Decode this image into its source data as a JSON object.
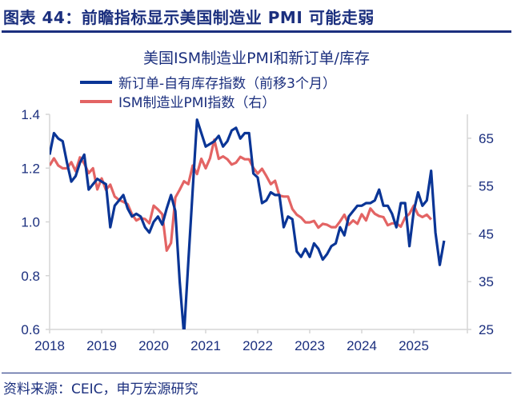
{
  "header": {
    "title": "图表 44：前瞻指标显示美国制造业 PMI 可能走弱"
  },
  "footer": {
    "source": "资料来源：CEIC，申万宏源研究"
  },
  "colors": {
    "navy": "#1b2f7e",
    "series_blue": "#0a3596",
    "series_red": "#e36464",
    "axis": "#d6d6d6"
  },
  "chart_data": {
    "type": "line",
    "title": "美国ISM制造业PMI和新订单/库存",
    "legend_position": "top-center",
    "x_start": "2018-01",
    "x_step": "month",
    "xticks": [
      "2018",
      "2019",
      "2020",
      "2021",
      "2022",
      "2023",
      "2024",
      "2025"
    ],
    "left_axis": {
      "ylim": [
        0.6,
        1.4
      ],
      "ticks": [
        "0.6",
        "0.8",
        "1.0",
        "1.2",
        "1.4"
      ]
    },
    "right_axis": {
      "ylim": [
        25,
        70
      ],
      "ticks": [
        "25",
        "35",
        "45",
        "55",
        "65"
      ]
    },
    "series": [
      {
        "name": "新订单-自有库存指数（前移3个月）",
        "axis": "left",
        "values": [
          1.25,
          1.33,
          1.31,
          1.3,
          1.22,
          1.15,
          1.17,
          1.22,
          1.25,
          1.12,
          1.14,
          1.16,
          1.15,
          1.14,
          0.98,
          1.06,
          1.08,
          1.1,
          1.05,
          1.02,
          1.03,
          1.02,
          0.98,
          0.96,
          1.0,
          1.02,
          0.99,
          1.05,
          1.1,
          1.04,
          0.78,
          0.58,
          0.85,
          1.12,
          1.38,
          1.33,
          1.28,
          1.29,
          1.3,
          1.32,
          1.28,
          1.3,
          1.34,
          1.35,
          1.31,
          1.33,
          1.33,
          1.18,
          1.165,
          1.07,
          1.08,
          1.11,
          1.1,
          1.1,
          0.98,
          1.02,
          1.01,
          0.89,
          0.87,
          0.9,
          0.87,
          0.92,
          0.9,
          0.86,
          0.88,
          0.91,
          0.92,
          0.98,
          0.95,
          1.02,
          1.04,
          1.06,
          1.06,
          1.07,
          1.07,
          1.08,
          1.12,
          1.06,
          1.06,
          1.03,
          0.98,
          1.07,
          1.07,
          0.91,
          1.04,
          1.11,
          1.06,
          1.08,
          1.19,
          0.96,
          0.84,
          0.93
        ]
      },
      {
        "name": "ISM制造业PMI指数（右）",
        "axis": "right",
        "values": [
          59.3,
          60.8,
          59.3,
          58.7,
          58.7,
          60.0,
          58.1,
          61.0,
          59.7,
          57.7,
          58.7,
          54.3,
          56.6,
          54.2,
          55.3,
          52.8,
          52.1,
          51.7,
          51.2,
          49.1,
          47.8,
          48.3,
          48.1,
          47.2,
          50.9,
          50.1,
          49.1,
          41.5,
          43.1,
          52.6,
          54.2,
          56.0,
          55.4,
          59.3,
          57.5,
          60.7,
          58.7,
          60.8,
          64.7,
          60.7,
          61.2,
          60.6,
          59.5,
          59.9,
          61.1,
          60.6,
          60.6,
          58.8,
          57.6,
          58.6,
          57.1,
          55.4,
          56.1,
          53.0,
          52.8,
          52.8,
          50.2,
          49.0,
          48.4,
          47.4,
          47.4,
          47.7,
          46.3,
          47.1,
          46.9,
          46.4,
          46.4,
          47.6,
          49.0,
          46.9,
          47.8,
          47.1,
          49.1,
          47.8,
          50.3,
          49.2,
          48.7,
          48.5,
          46.8,
          47.2,
          47.2,
          46.5,
          48.4,
          49.2,
          50.9,
          49.0,
          48.5,
          49.0,
          48.0
        ]
      }
    ]
  }
}
